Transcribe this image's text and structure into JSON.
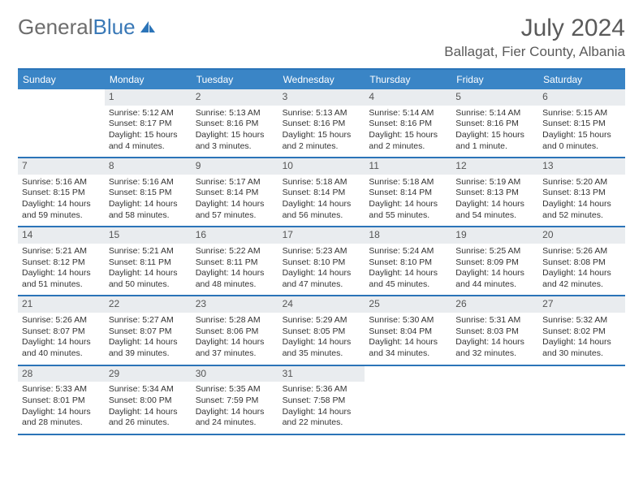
{
  "logo": {
    "part1": "General",
    "part2": "Blue"
  },
  "month_title": "July 2024",
  "location": "Ballagat, Fier County, Albania",
  "day_headers": [
    "Sunday",
    "Monday",
    "Tuesday",
    "Wednesday",
    "Thursday",
    "Friday",
    "Saturday"
  ],
  "colors": {
    "header_bg": "#3a85c6",
    "border": "#2b74b8",
    "num_bg": "#e9ecef",
    "text": "#333333",
    "title": "#5a5a5a"
  },
  "weeks": [
    [
      null,
      {
        "n": "1",
        "sr": "Sunrise: 5:12 AM",
        "ss": "Sunset: 8:17 PM",
        "dl": "Daylight: 15 hours and 4 minutes."
      },
      {
        "n": "2",
        "sr": "Sunrise: 5:13 AM",
        "ss": "Sunset: 8:16 PM",
        "dl": "Daylight: 15 hours and 3 minutes."
      },
      {
        "n": "3",
        "sr": "Sunrise: 5:13 AM",
        "ss": "Sunset: 8:16 PM",
        "dl": "Daylight: 15 hours and 2 minutes."
      },
      {
        "n": "4",
        "sr": "Sunrise: 5:14 AM",
        "ss": "Sunset: 8:16 PM",
        "dl": "Daylight: 15 hours and 2 minutes."
      },
      {
        "n": "5",
        "sr": "Sunrise: 5:14 AM",
        "ss": "Sunset: 8:16 PM",
        "dl": "Daylight: 15 hours and 1 minute."
      },
      {
        "n": "6",
        "sr": "Sunrise: 5:15 AM",
        "ss": "Sunset: 8:15 PM",
        "dl": "Daylight: 15 hours and 0 minutes."
      }
    ],
    [
      {
        "n": "7",
        "sr": "Sunrise: 5:16 AM",
        "ss": "Sunset: 8:15 PM",
        "dl": "Daylight: 14 hours and 59 minutes."
      },
      {
        "n": "8",
        "sr": "Sunrise: 5:16 AM",
        "ss": "Sunset: 8:15 PM",
        "dl": "Daylight: 14 hours and 58 minutes."
      },
      {
        "n": "9",
        "sr": "Sunrise: 5:17 AM",
        "ss": "Sunset: 8:14 PM",
        "dl": "Daylight: 14 hours and 57 minutes."
      },
      {
        "n": "10",
        "sr": "Sunrise: 5:18 AM",
        "ss": "Sunset: 8:14 PM",
        "dl": "Daylight: 14 hours and 56 minutes."
      },
      {
        "n": "11",
        "sr": "Sunrise: 5:18 AM",
        "ss": "Sunset: 8:14 PM",
        "dl": "Daylight: 14 hours and 55 minutes."
      },
      {
        "n": "12",
        "sr": "Sunrise: 5:19 AM",
        "ss": "Sunset: 8:13 PM",
        "dl": "Daylight: 14 hours and 54 minutes."
      },
      {
        "n": "13",
        "sr": "Sunrise: 5:20 AM",
        "ss": "Sunset: 8:13 PM",
        "dl": "Daylight: 14 hours and 52 minutes."
      }
    ],
    [
      {
        "n": "14",
        "sr": "Sunrise: 5:21 AM",
        "ss": "Sunset: 8:12 PM",
        "dl": "Daylight: 14 hours and 51 minutes."
      },
      {
        "n": "15",
        "sr": "Sunrise: 5:21 AM",
        "ss": "Sunset: 8:11 PM",
        "dl": "Daylight: 14 hours and 50 minutes."
      },
      {
        "n": "16",
        "sr": "Sunrise: 5:22 AM",
        "ss": "Sunset: 8:11 PM",
        "dl": "Daylight: 14 hours and 48 minutes."
      },
      {
        "n": "17",
        "sr": "Sunrise: 5:23 AM",
        "ss": "Sunset: 8:10 PM",
        "dl": "Daylight: 14 hours and 47 minutes."
      },
      {
        "n": "18",
        "sr": "Sunrise: 5:24 AM",
        "ss": "Sunset: 8:10 PM",
        "dl": "Daylight: 14 hours and 45 minutes."
      },
      {
        "n": "19",
        "sr": "Sunrise: 5:25 AM",
        "ss": "Sunset: 8:09 PM",
        "dl": "Daylight: 14 hours and 44 minutes."
      },
      {
        "n": "20",
        "sr": "Sunrise: 5:26 AM",
        "ss": "Sunset: 8:08 PM",
        "dl": "Daylight: 14 hours and 42 minutes."
      }
    ],
    [
      {
        "n": "21",
        "sr": "Sunrise: 5:26 AM",
        "ss": "Sunset: 8:07 PM",
        "dl": "Daylight: 14 hours and 40 minutes."
      },
      {
        "n": "22",
        "sr": "Sunrise: 5:27 AM",
        "ss": "Sunset: 8:07 PM",
        "dl": "Daylight: 14 hours and 39 minutes."
      },
      {
        "n": "23",
        "sr": "Sunrise: 5:28 AM",
        "ss": "Sunset: 8:06 PM",
        "dl": "Daylight: 14 hours and 37 minutes."
      },
      {
        "n": "24",
        "sr": "Sunrise: 5:29 AM",
        "ss": "Sunset: 8:05 PM",
        "dl": "Daylight: 14 hours and 35 minutes."
      },
      {
        "n": "25",
        "sr": "Sunrise: 5:30 AM",
        "ss": "Sunset: 8:04 PM",
        "dl": "Daylight: 14 hours and 34 minutes."
      },
      {
        "n": "26",
        "sr": "Sunrise: 5:31 AM",
        "ss": "Sunset: 8:03 PM",
        "dl": "Daylight: 14 hours and 32 minutes."
      },
      {
        "n": "27",
        "sr": "Sunrise: 5:32 AM",
        "ss": "Sunset: 8:02 PM",
        "dl": "Daylight: 14 hours and 30 minutes."
      }
    ],
    [
      {
        "n": "28",
        "sr": "Sunrise: 5:33 AM",
        "ss": "Sunset: 8:01 PM",
        "dl": "Daylight: 14 hours and 28 minutes."
      },
      {
        "n": "29",
        "sr": "Sunrise: 5:34 AM",
        "ss": "Sunset: 8:00 PM",
        "dl": "Daylight: 14 hours and 26 minutes."
      },
      {
        "n": "30",
        "sr": "Sunrise: 5:35 AM",
        "ss": "Sunset: 7:59 PM",
        "dl": "Daylight: 14 hours and 24 minutes."
      },
      {
        "n": "31",
        "sr": "Sunrise: 5:36 AM",
        "ss": "Sunset: 7:58 PM",
        "dl": "Daylight: 14 hours and 22 minutes."
      },
      null,
      null,
      null
    ]
  ]
}
